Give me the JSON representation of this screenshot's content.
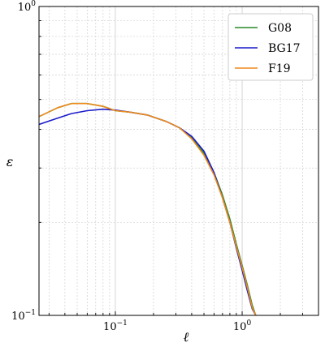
{
  "chart_data": {
    "type": "line",
    "xscale": "log",
    "yscale": "log",
    "xlim": [
      0.025,
      4.0
    ],
    "ylim": [
      0.1,
      1.0
    ],
    "xlabel": "ℓ",
    "ylabel": "ε",
    "grid": true,
    "legend": "top-right",
    "x_major_ticks": [
      {
        "value": 0.1,
        "label": "10",
        "exp": "−1"
      },
      {
        "value": 1.0,
        "label": "10",
        "exp": "0"
      }
    ],
    "y_major_ticks": [
      {
        "value": 0.1,
        "label": "10",
        "exp": "−1"
      },
      {
        "value": 1.0,
        "label": "10",
        "exp": "0"
      }
    ],
    "series": [
      {
        "name": "G08",
        "color": "#2a8a2a",
        "x": [
          0.025,
          0.035,
          0.045,
          0.06,
          0.08,
          0.1,
          0.13,
          0.18,
          0.25,
          0.32,
          0.4,
          0.5,
          0.6,
          0.7,
          0.8,
          0.9,
          1.0,
          1.1,
          1.2,
          1.28
        ],
        "y": [
          0.44,
          0.47,
          0.485,
          0.485,
          0.475,
          0.46,
          0.455,
          0.445,
          0.425,
          0.405,
          0.375,
          0.335,
          0.29,
          0.245,
          0.205,
          0.17,
          0.145,
          0.125,
          0.108,
          0.1
        ]
      },
      {
        "name": "BG17",
        "color": "#1a1acc",
        "x": [
          0.025,
          0.035,
          0.045,
          0.06,
          0.08,
          0.1,
          0.13,
          0.18,
          0.25,
          0.32,
          0.4,
          0.5,
          0.6,
          0.7,
          0.8,
          0.9,
          1.0,
          1.1,
          1.2,
          1.28
        ],
        "y": [
          0.415,
          0.435,
          0.45,
          0.46,
          0.465,
          0.462,
          0.455,
          0.445,
          0.425,
          0.405,
          0.38,
          0.34,
          0.29,
          0.24,
          0.2,
          0.165,
          0.14,
          0.12,
          0.105,
          0.1
        ]
      },
      {
        "name": "F19",
        "color": "#ef8a1a",
        "x": [
          0.025,
          0.035,
          0.045,
          0.06,
          0.08,
          0.1,
          0.13,
          0.18,
          0.25,
          0.32,
          0.4,
          0.5,
          0.6,
          0.7,
          0.8,
          0.9,
          1.0,
          1.1,
          1.2,
          1.28
        ],
        "y": [
          0.44,
          0.47,
          0.485,
          0.485,
          0.475,
          0.46,
          0.455,
          0.445,
          0.425,
          0.405,
          0.373,
          0.33,
          0.285,
          0.24,
          0.2,
          0.167,
          0.143,
          0.123,
          0.106,
          0.1
        ]
      }
    ]
  }
}
